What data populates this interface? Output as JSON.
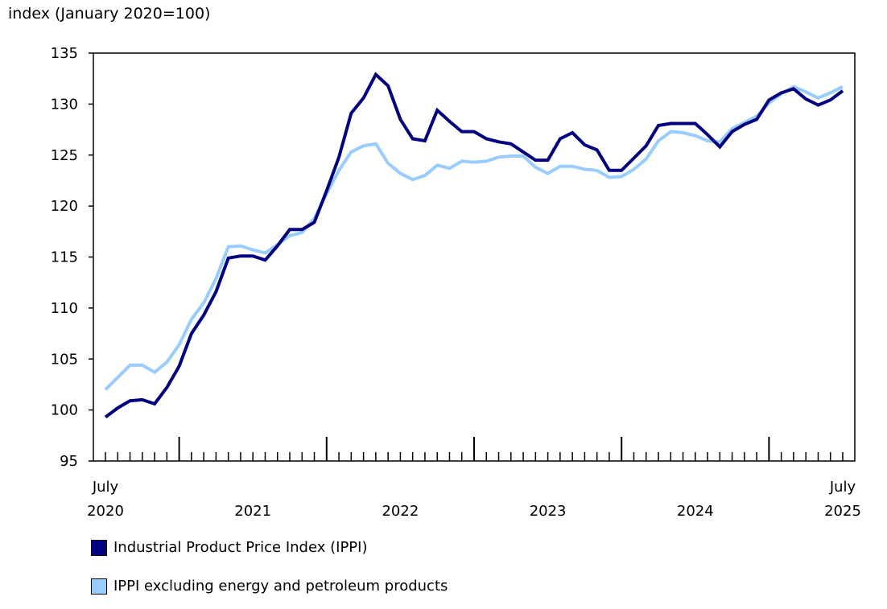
{
  "chart_data": {
    "type": "line",
    "ylabel": "index (January 2020=100)",
    "ylim": [
      95,
      135
    ],
    "yticks": [
      95,
      100,
      105,
      110,
      115,
      120,
      125,
      130,
      135
    ],
    "grid": false,
    "legend_placement": "bottom-left",
    "x_labels": [
      {
        "month": "2020-07",
        "lines": [
          "July",
          "2020"
        ]
      },
      {
        "month": "2021-07",
        "lines": [
          "",
          "2021"
        ]
      },
      {
        "month": "2022-07",
        "lines": [
          "",
          "2022"
        ]
      },
      {
        "month": "2023-07",
        "lines": [
          "",
          "2023"
        ]
      },
      {
        "month": "2024-07",
        "lines": [
          "",
          "2024"
        ]
      },
      {
        "month": "2025-07",
        "lines": [
          "July",
          "2025"
        ]
      }
    ],
    "x": [
      "2020-07",
      "2020-08",
      "2020-09",
      "2020-10",
      "2020-11",
      "2020-12",
      "2021-01",
      "2021-02",
      "2021-03",
      "2021-04",
      "2021-05",
      "2021-06",
      "2021-07",
      "2021-08",
      "2021-09",
      "2021-10",
      "2021-11",
      "2021-12",
      "2022-01",
      "2022-02",
      "2022-03",
      "2022-04",
      "2022-05",
      "2022-06",
      "2022-07",
      "2022-08",
      "2022-09",
      "2022-10",
      "2022-11",
      "2022-12",
      "2023-01",
      "2023-02",
      "2023-03",
      "2023-04",
      "2023-05",
      "2023-06",
      "2023-07",
      "2023-08",
      "2023-09",
      "2023-10",
      "2023-11",
      "2023-12",
      "2024-01",
      "2024-02",
      "2024-03",
      "2024-04",
      "2024-05",
      "2024-06",
      "2024-07",
      "2024-08",
      "2024-09",
      "2024-10",
      "2024-11",
      "2024-12",
      "2025-01",
      "2025-02",
      "2025-03",
      "2025-04",
      "2025-05",
      "2025-06",
      "2025-07"
    ],
    "series": [
      {
        "name": "Industrial Product Price Index (IPPI)",
        "color": "#000080",
        "values": [
          99.3,
          100.2,
          100.9,
          101.0,
          100.6,
          102.2,
          104.3,
          107.5,
          109.3,
          111.6,
          114.9,
          115.1,
          115.1,
          114.7,
          116.1,
          117.7,
          117.7,
          118.4,
          121.5,
          124.8,
          129.1,
          130.6,
          132.9,
          131.8,
          128.5,
          126.6,
          126.4,
          129.4,
          128.3,
          127.3,
          127.3,
          126.6,
          126.3,
          126.1,
          125.3,
          124.5,
          124.5,
          126.6,
          127.2,
          126.0,
          125.5,
          123.5,
          123.5,
          124.7,
          125.9,
          127.9,
          128.1,
          128.1,
          128.1,
          127.0,
          125.8,
          127.3,
          128.0,
          128.5,
          130.4,
          131.1,
          131.5,
          130.5,
          129.9,
          130.4,
          131.3
        ]
      },
      {
        "name": "IPPI excluding energy and petroleum products",
        "color": "#99CCFF",
        "values": [
          102.0,
          103.2,
          104.4,
          104.4,
          103.7,
          104.7,
          106.4,
          108.9,
          110.5,
          112.9,
          116.0,
          116.1,
          115.7,
          115.4,
          116.2,
          117.1,
          117.4,
          118.8,
          121.2,
          123.5,
          125.3,
          125.9,
          126.1,
          124.2,
          123.2,
          122.6,
          123.0,
          124.0,
          123.7,
          124.4,
          124.3,
          124.4,
          124.8,
          124.9,
          124.9,
          123.8,
          123.2,
          123.9,
          123.9,
          123.6,
          123.5,
          122.8,
          122.9,
          123.6,
          124.6,
          126.4,
          127.3,
          127.2,
          126.9,
          126.4,
          126.3,
          127.6,
          128.2,
          128.8,
          130.1,
          131.0,
          131.7,
          131.2,
          130.6,
          131.1,
          131.7
        ]
      }
    ]
  }
}
